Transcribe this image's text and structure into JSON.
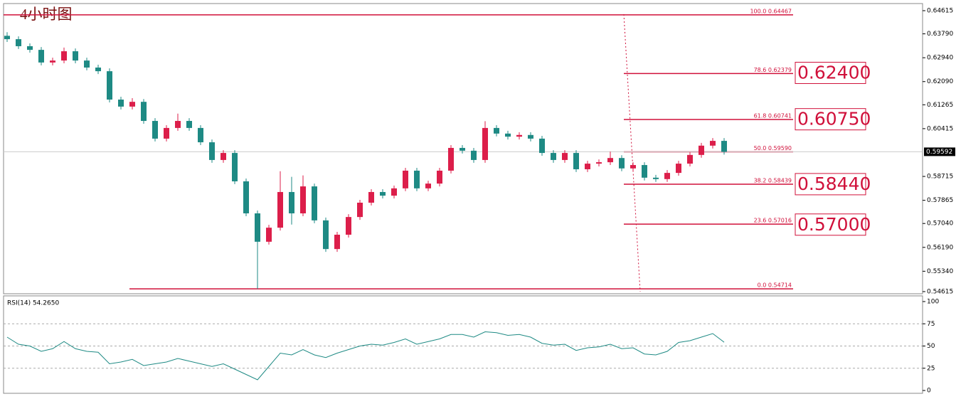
{
  "chart_data": [
    {
      "type": "candlestick",
      "title": "4小时图",
      "open": [
        0.6372,
        0.636,
        0.6335,
        0.6322,
        0.6277,
        0.6284,
        0.6317,
        0.6284,
        0.6259,
        0.6246,
        0.6145,
        0.612,
        0.6137,
        0.6069,
        0.6006,
        0.6044,
        0.6069,
        0.6044,
        0.5993,
        0.593,
        0.5955,
        0.5854,
        0.574,
        0.5639,
        0.5689,
        0.5816,
        0.574,
        0.5836,
        0.5715,
        0.5613,
        0.5664,
        0.5727,
        0.5778,
        0.5816,
        0.5803,
        0.5829,
        0.5892,
        0.5829,
        0.5846,
        0.5892,
        0.5973,
        0.5963,
        0.593,
        0.6044,
        0.6024,
        0.6013,
        0.6019,
        0.6006,
        0.5955,
        0.593,
        0.5955,
        0.5897,
        0.5917,
        0.5922,
        0.5937,
        0.59,
        0.5912,
        0.5867,
        0.5862,
        0.5884,
        0.5917,
        0.5948,
        0.5981,
        0.5998
      ],
      "high": [
        0.6385,
        0.637,
        0.6345,
        0.6332,
        0.6294,
        0.633,
        0.6327,
        0.6294,
        0.6269,
        0.6256,
        0.6155,
        0.615,
        0.6147,
        0.6079,
        0.6054,
        0.6095,
        0.6079,
        0.6054,
        0.6003,
        0.5965,
        0.5965,
        0.5864,
        0.575,
        0.5699,
        0.589,
        0.587,
        0.5875,
        0.5846,
        0.5725,
        0.5674,
        0.5737,
        0.5788,
        0.5826,
        0.5826,
        0.5839,
        0.5902,
        0.5902,
        0.5856,
        0.5902,
        0.5983,
        0.5983,
        0.5973,
        0.6068,
        0.6054,
        0.6034,
        0.6029,
        0.6029,
        0.6016,
        0.5965,
        0.5965,
        0.5965,
        0.5927,
        0.5932,
        0.596,
        0.5947,
        0.5922,
        0.5922,
        0.5877,
        0.5894,
        0.5927,
        0.5958,
        0.5991,
        0.6008,
        0.6008
      ],
      "low": [
        0.635,
        0.6325,
        0.6312,
        0.6267,
        0.6267,
        0.6274,
        0.6274,
        0.6249,
        0.6236,
        0.6135,
        0.611,
        0.611,
        0.6059,
        0.5996,
        0.5996,
        0.6034,
        0.6034,
        0.5983,
        0.592,
        0.592,
        0.5844,
        0.573,
        0.5471,
        0.5629,
        0.5679,
        0.57,
        0.573,
        0.5705,
        0.5603,
        0.5603,
        0.5654,
        0.5717,
        0.5768,
        0.5793,
        0.5793,
        0.5819,
        0.5819,
        0.5819,
        0.5836,
        0.5882,
        0.5953,
        0.592,
        0.592,
        0.6014,
        0.6003,
        0.6003,
        0.5996,
        0.5945,
        0.592,
        0.592,
        0.5887,
        0.5887,
        0.5907,
        0.5912,
        0.589,
        0.589,
        0.5857,
        0.5852,
        0.5852,
        0.5874,
        0.5907,
        0.5938,
        0.5971,
        0.5949
      ],
      "close": [
        0.636,
        0.6335,
        0.6322,
        0.6277,
        0.6284,
        0.6317,
        0.6284,
        0.6259,
        0.6246,
        0.6145,
        0.612,
        0.6137,
        0.6069,
        0.6006,
        0.6044,
        0.6069,
        0.6044,
        0.5993,
        0.593,
        0.5955,
        0.5854,
        0.574,
        0.5639,
        0.5689,
        0.5816,
        0.574,
        0.5836,
        0.5715,
        0.5613,
        0.5664,
        0.5727,
        0.5778,
        0.5816,
        0.5803,
        0.5829,
        0.5892,
        0.5829,
        0.5846,
        0.5892,
        0.5973,
        0.5963,
        0.593,
        0.6044,
        0.6024,
        0.6013,
        0.6019,
        0.6006,
        0.5955,
        0.593,
        0.5955,
        0.5897,
        0.5917,
        0.5922,
        0.5937,
        0.59,
        0.5912,
        0.5867,
        0.5862,
        0.5884,
        0.5917,
        0.5948,
        0.5981,
        0.5998,
        0.5959
      ],
      "up_color": "#dc1e4a",
      "down_color": "#1e8a84",
      "ylim": [
        0.54539,
        0.64868
      ],
      "yticks": [
        {
          "value": 0.64615,
          "label": "0.64615"
        },
        {
          "value": 0.6379,
          "label": "0.63790"
        },
        {
          "value": 0.6294,
          "label": "0.62940"
        },
        {
          "value": 0.6209,
          "label": "0.62090"
        },
        {
          "value": 0.61265,
          "label": "0.61265"
        },
        {
          "value": 0.60415,
          "label": "0.60415"
        },
        {
          "value": 0.58715,
          "label": "0.58715"
        },
        {
          "value": 0.57865,
          "label": "0.57865"
        },
        {
          "value": 0.5704,
          "label": "0.57040"
        },
        {
          "value": 0.5619,
          "label": "0.56190"
        },
        {
          "value": 0.5534,
          "label": "0.55340"
        },
        {
          "value": 0.54615,
          "label": "0.54615"
        }
      ],
      "last_price": {
        "value": 0.59592,
        "label": "0.59592"
      },
      "fib_color": "#d0103a",
      "fibonacci": [
        {
          "value": 0.64467,
          "label": "100.0  0.64467"
        },
        {
          "value": 0.62379,
          "label": "78.6  0.62379"
        },
        {
          "value": 0.60741,
          "label": "61.8  0.60741"
        },
        {
          "value": 0.5959,
          "label": "50.0  0.59590"
        },
        {
          "value": 0.58439,
          "label": "38.2  0.58439"
        },
        {
          "value": 0.57016,
          "label": "23.6  0.57016"
        },
        {
          "value": 0.54714,
          "label": "0.0  0.54714"
        }
      ],
      "annotations": [
        {
          "value": 0.624,
          "label": "0.62400"
        },
        {
          "value": 0.6075,
          "label": "0.60750"
        },
        {
          "value": 0.5844,
          "label": "0.58440"
        },
        {
          "value": 0.57,
          "label": "0.57000"
        }
      ]
    },
    {
      "type": "line",
      "title": "RSI(14) 54.2650",
      "color": "#1e8a84",
      "values": [
        60,
        52,
        50,
        44,
        47,
        55,
        47,
        44,
        43,
        30,
        32,
        35,
        28,
        30,
        32,
        36,
        33,
        30,
        27,
        30,
        24,
        18,
        12,
        27,
        42,
        40,
        46,
        40,
        37,
        42,
        46,
        50,
        52,
        51,
        54,
        58,
        52,
        55,
        58,
        63,
        63,
        60,
        66,
        65,
        62,
        63,
        60,
        53,
        51,
        52,
        45,
        48,
        49,
        52,
        47,
        48,
        41,
        40,
        44,
        54,
        56,
        60,
        64,
        54.265
      ],
      "ylim": [
        0,
        100
      ],
      "yticks": [
        0,
        25,
        50,
        75,
        100
      ],
      "levels": [
        25,
        50,
        75
      ]
    }
  ]
}
